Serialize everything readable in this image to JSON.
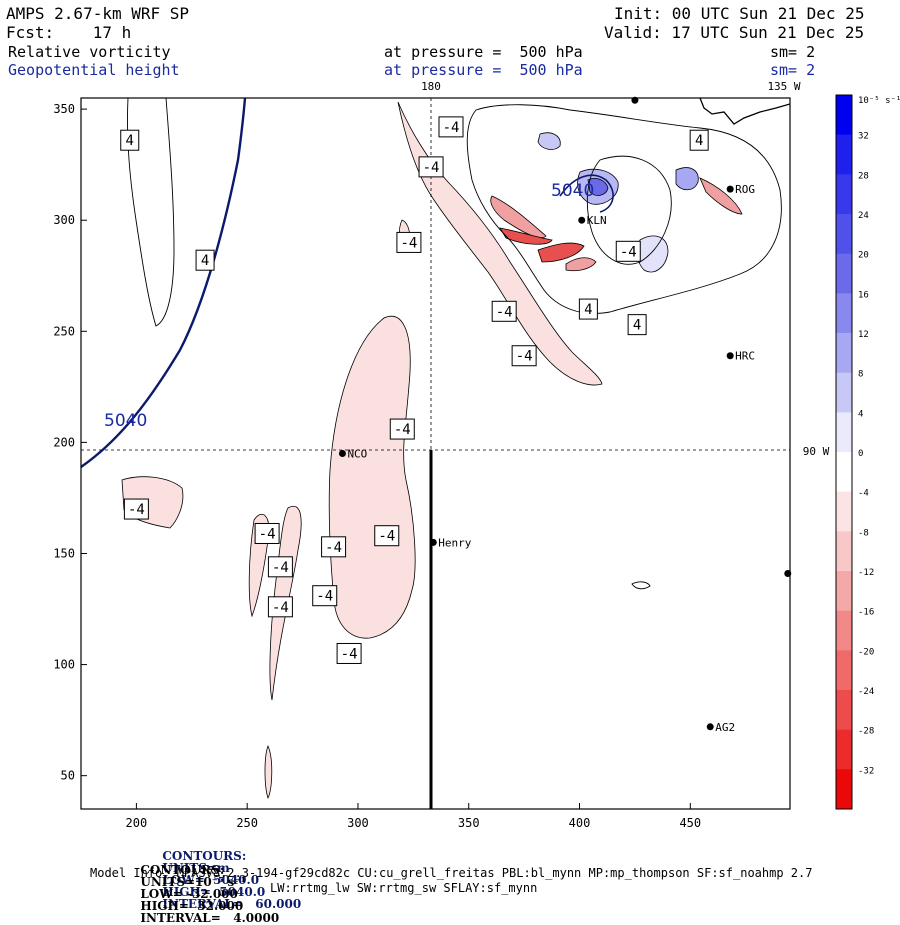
{
  "header": {
    "title": "AMPS 2.67-km WRF SP",
    "fcst": "Fcst:    17 h",
    "init": "Init: 00 UTC Sun 21 Dec 25",
    "valid": "Valid: 17 UTC Sun 21 Dec 25",
    "field1_name": "Relative vorticity",
    "field1_level": "at pressure =  500 hPa",
    "field1_sm": "sm= 2",
    "field2_name": "Geopotential height",
    "field2_level": "at pressure =  500 hPa",
    "field2_sm": "sm= 2"
  },
  "map": {
    "meridian_labels": [
      "180",
      "135 W",
      "90 W"
    ],
    "x_ticks": [
      "200",
      "250",
      "300",
      "350",
      "400",
      "450"
    ],
    "y_ticks": [
      "350",
      "300",
      "250",
      "200",
      "150",
      "100",
      "50"
    ],
    "x_range": [
      175,
      495
    ],
    "y_range": [
      35,
      355
    ],
    "stations": [
      {
        "name": "NCO",
        "x": 293,
        "y": 195
      },
      {
        "name": "Henry",
        "x": 334,
        "y": 155
      },
      {
        "name": "KLN",
        "x": 401,
        "y": 300
      },
      {
        "name": "HRC",
        "x": 468,
        "y": 239
      },
      {
        "name": "AG2",
        "x": 459,
        "y": 72
      },
      {
        "name": "ROG",
        "x": 468,
        "y": 314
      },
      {
        "name": "",
        "x": 494,
        "y": 141
      },
      {
        "name": "",
        "x": 425,
        "y": 354
      }
    ],
    "height_labels": [
      "5040",
      "5040"
    ],
    "vorticity_labels": [
      {
        "text": "4",
        "x": 197,
        "y": 336
      },
      {
        "text": "4",
        "x": 231,
        "y": 282
      },
      {
        "text": "4",
        "x": 454,
        "y": 336
      },
      {
        "text": "4",
        "x": 404,
        "y": 260
      },
      {
        "text": "4",
        "x": 426,
        "y": 253
      },
      {
        "text": "-4",
        "x": 342,
        "y": 342
      },
      {
        "text": "-4",
        "x": 333,
        "y": 324
      },
      {
        "text": "-4",
        "x": 323,
        "y": 290
      },
      {
        "text": "-4",
        "x": 366,
        "y": 259
      },
      {
        "text": "-4",
        "x": 375,
        "y": 239
      },
      {
        "text": "-4",
        "x": 422,
        "y": 286
      },
      {
        "text": "-4",
        "x": 320,
        "y": 206
      },
      {
        "text": "-4",
        "x": 200,
        "y": 170
      },
      {
        "text": "-4",
        "x": 259,
        "y": 159
      },
      {
        "text": "-4",
        "x": 265,
        "y": 144
      },
      {
        "text": "-4",
        "x": 265,
        "y": 126
      },
      {
        "text": "-4",
        "x": 289,
        "y": 153
      },
      {
        "text": "-4",
        "x": 285,
        "y": 131
      },
      {
        "text": "-4",
        "x": 296,
        "y": 105
      },
      {
        "text": "-4",
        "x": 313,
        "y": 158
      }
    ]
  },
  "colorbar": {
    "unit_label": "10⁻⁵ s⁻¹",
    "levels": [
      "32",
      "28",
      "24",
      "20",
      "16",
      "12",
      "8",
      "4",
      "0",
      "-4",
      "-8",
      "-12",
      "-16",
      "-20",
      "-24",
      "-28",
      "-32"
    ],
    "colors": [
      "#0000f0",
      "#2020ee",
      "#3838ec",
      "#5050ea",
      "#6a6aea",
      "#8888ee",
      "#a8a8f2",
      "#c8c8f6",
      "#eaeafc",
      "#ffffff",
      "#fce4e4",
      "#f8c8c8",
      "#f4a8a8",
      "#f28888",
      "#f06a6a",
      "#ee4c4c",
      "#ec2c2c",
      "#ea0808"
    ]
  },
  "footer": {
    "contours1_label": "CONTOURS:",
    "contours1_units": "UNITS=m",
    "contours1_low": "LOW=  5040.0",
    "contours1_high": "HIGH=  5040.0",
    "contours1_interval": "INTERVAL=   60.000",
    "contours2_label": "CONTOURS:",
    "contours2_units": "UNITS=10⁻⁵ s⁻¹",
    "contours2_low": "LOW= -32.000",
    "contours2_high": "HIGH=  32.000",
    "contours2_interval": "INTERVAL=   4.0000",
    "model_info": "Model Info: MPASv8.2.3-194-gf29cd82c CU:cu_grell_freitas PBL:bl_mynn MP:mp_thompson SF:sf_noahmp 2.7",
    "model_info2": "LW:rrtmg_lw SW:rrtmg_sw SFLAY:sf_mynn"
  }
}
